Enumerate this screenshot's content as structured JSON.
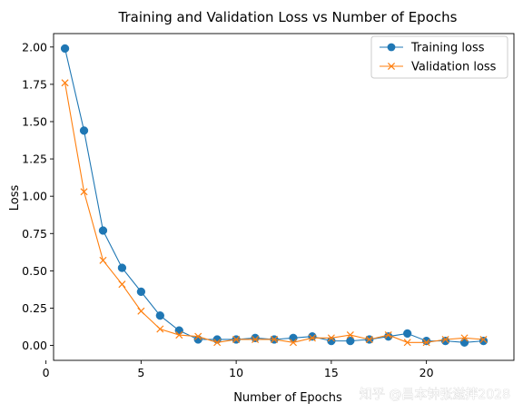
{
  "chart_data": {
    "type": "line",
    "title": "Training and Validation Loss vs Number of Epochs",
    "xlabel": "Number of Epochs",
    "ylabel": "Loss",
    "xlim": [
      0.4,
      24.6
    ],
    "ylim": [
      -0.1,
      2.09
    ],
    "xticks": [
      0,
      5,
      10,
      15,
      20
    ],
    "yticks": [
      0.0,
      0.25,
      0.5,
      0.75,
      1.0,
      1.25,
      1.5,
      1.75,
      2.0
    ],
    "xtick_labels": [
      "0",
      "5",
      "10",
      "15",
      "20"
    ],
    "ytick_labels": [
      "0.00",
      "0.25",
      "0.50",
      "0.75",
      "1.00",
      "1.25",
      "1.50",
      "1.75",
      "2.00"
    ],
    "grid": false,
    "legend_position": "top-right",
    "x": [
      1,
      2,
      3,
      4,
      5,
      6,
      7,
      8,
      9,
      10,
      11,
      12,
      13,
      14,
      15,
      16,
      17,
      18,
      19,
      20,
      21,
      22,
      23
    ],
    "series": [
      {
        "name": "Training loss",
        "color": "#1f77b4",
        "marker": "circle",
        "values": [
          1.99,
          1.44,
          0.77,
          0.52,
          0.36,
          0.2,
          0.1,
          0.04,
          0.04,
          0.04,
          0.05,
          0.04,
          0.05,
          0.06,
          0.03,
          0.03,
          0.04,
          0.06,
          0.08,
          0.03,
          0.03,
          0.02,
          0.03
        ]
      },
      {
        "name": "Validation loss",
        "color": "#ff7f0e",
        "marker": "x",
        "values": [
          1.76,
          1.03,
          0.57,
          0.41,
          0.23,
          0.11,
          0.07,
          0.06,
          0.02,
          0.04,
          0.04,
          0.04,
          0.02,
          0.05,
          0.05,
          0.07,
          0.04,
          0.07,
          0.02,
          0.02,
          0.04,
          0.05,
          0.04
        ]
      }
    ],
    "watermark": "知乎 @昌本钟张滋拌2028"
  }
}
